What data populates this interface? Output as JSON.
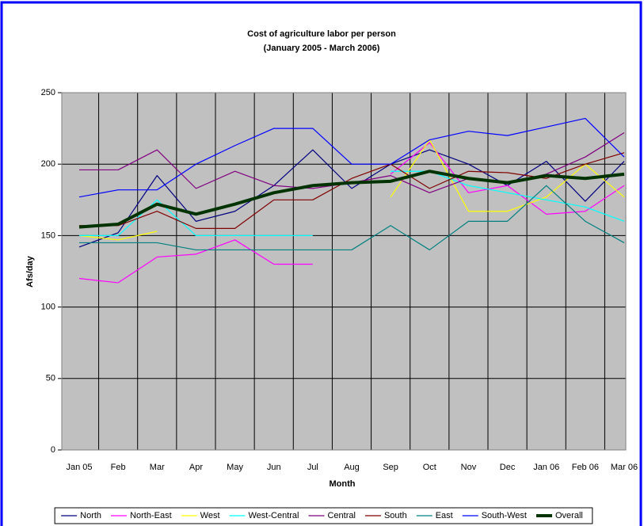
{
  "chart_data": {
    "type": "line",
    "title": "Cost of agriculture labor per person",
    "subtitle": "(January 2005 - March 2006)",
    "x_label": "Month",
    "y_label": "Afs/day",
    "categories": [
      "Jan 05",
      "Feb",
      "Mar",
      "Apr",
      "May",
      "Jun",
      "Jul",
      "Aug",
      "Sep",
      "Oct",
      "Nov",
      "Dec",
      "Jan 06",
      "Feb 06",
      "Mar 06"
    ],
    "ylim": [
      0,
      250
    ],
    "yticks": [
      0,
      50,
      100,
      150,
      200,
      250
    ],
    "grid": true,
    "legend": "bottom",
    "series": [
      {
        "name": "North",
        "color": "#000080",
        "values": [
          142,
          152,
          192,
          160,
          167,
          185,
          210,
          183,
          200,
          210,
          200,
          185,
          202,
          174,
          202
        ]
      },
      {
        "name": "North-East",
        "color": "#ff00ff",
        "values": [
          120,
          117,
          135,
          137,
          147,
          130,
          130,
          null,
          193,
          215,
          180,
          185,
          165,
          167,
          185
        ]
      },
      {
        "name": "West",
        "color": "#ffff00",
        "values": [
          150,
          147,
          153,
          null,
          null,
          null,
          null,
          null,
          177,
          217,
          167,
          167,
          177,
          200,
          177
        ]
      },
      {
        "name": "West-Central",
        "color": "#00ffff",
        "values": [
          150,
          150,
          175,
          150,
          150,
          150,
          150,
          null,
          195,
          195,
          185,
          180,
          175,
          170,
          160
        ]
      },
      {
        "name": "Central",
        "color": "#800080",
        "values": [
          196,
          196,
          210,
          183,
          195,
          185,
          183,
          187,
          192,
          180,
          190,
          187,
          193,
          205,
          222
        ]
      },
      {
        "name": "South",
        "color": "#800000",
        "values": [
          157,
          157,
          167,
          155,
          155,
          175,
          175,
          190,
          200,
          183,
          195,
          194,
          190,
          200,
          208
        ]
      },
      {
        "name": "East",
        "color": "#008080",
        "values": [
          145,
          145,
          145,
          140,
          140,
          140,
          140,
          140,
          157,
          140,
          160,
          160,
          185,
          160,
          145
        ]
      },
      {
        "name": "South-West",
        "color": "#0000ff",
        "values": [
          177,
          182,
          182,
          200,
          213,
          225,
          225,
          200,
          200,
          217,
          223,
          220,
          226,
          232,
          205
        ]
      },
      {
        "name": "Overall",
        "color": "#003300",
        "width": 4,
        "values": [
          156,
          158,
          172,
          165,
          172,
          180,
          185,
          187,
          188,
          195,
          190,
          187,
          192,
          190,
          193
        ]
      }
    ]
  }
}
